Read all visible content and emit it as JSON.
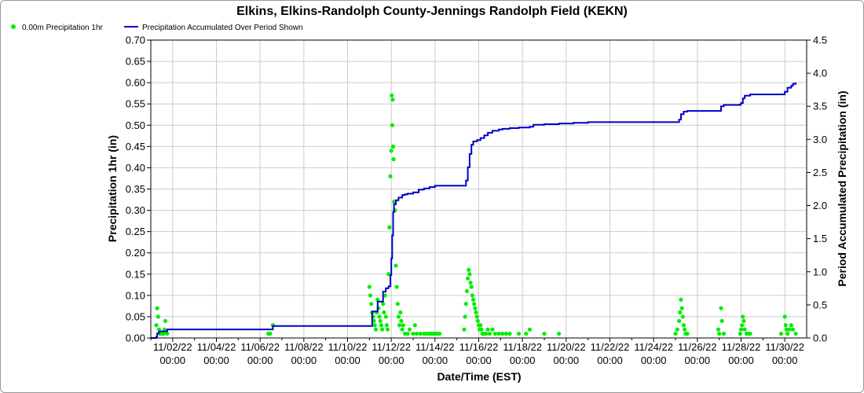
{
  "chart_data": {
    "type": "line",
    "title": "Elkins, Elkins-Randolph County-Jennings Randolph Field (KEKN)",
    "xlabel": "Date/Time (EST)",
    "ylabel": "Precipitation 1hr (in)",
    "y2label": "Period Accumulated Precipitation (in)",
    "xlim": [
      "2022-11-01 00:00",
      "2022-12-01 00:00"
    ],
    "ylim": [
      0,
      0.7
    ],
    "y2lim": [
      0,
      4.5
    ],
    "grid": true,
    "legend_position": "top-left",
    "x_ticks": [
      {
        "date": "2022-11-02",
        "line1": "11/02/22",
        "line2": "00:00"
      },
      {
        "date": "2022-11-04",
        "line1": "11/04/22",
        "line2": "00:00"
      },
      {
        "date": "2022-11-06",
        "line1": "11/06/22",
        "line2": "00:00"
      },
      {
        "date": "2022-11-08",
        "line1": "11/08/22",
        "line2": "00:00"
      },
      {
        "date": "2022-11-10",
        "line1": "11/10/22",
        "line2": "00:00"
      },
      {
        "date": "2022-11-12",
        "line1": "11/12/22",
        "line2": "00:00"
      },
      {
        "date": "2022-11-14",
        "line1": "11/14/22",
        "line2": "00:00"
      },
      {
        "date": "2022-11-16",
        "line1": "11/16/22",
        "line2": "00:00"
      },
      {
        "date": "2022-11-18",
        "line1": "11/18/22",
        "line2": "00:00"
      },
      {
        "date": "2022-11-20",
        "line1": "11/20/22",
        "line2": "00:00"
      },
      {
        "date": "2022-11-22",
        "line1": "11/22/22",
        "line2": "00:00"
      },
      {
        "date": "2022-11-24",
        "line1": "11/24/22",
        "line2": "00:00"
      },
      {
        "date": "2022-11-26",
        "line1": "11/26/22",
        "line2": "00:00"
      },
      {
        "date": "2022-11-28",
        "line1": "11/28/22",
        "line2": "00:00"
      },
      {
        "date": "2022-11-30",
        "line1": "11/30/22",
        "line2": "00:00"
      }
    ],
    "y_ticks": [
      "0.00",
      "0.05",
      "0.10",
      "0.15",
      "0.20",
      "0.25",
      "0.30",
      "0.35",
      "0.40",
      "0.45",
      "0.50",
      "0.55",
      "0.60",
      "0.65",
      "0.70"
    ],
    "y2_ticks": [
      "0.0",
      "0.5",
      "1.0",
      "1.5",
      "2.0",
      "2.5",
      "3.0",
      "3.5",
      "4.0",
      "4.5"
    ],
    "series": [
      {
        "name": "0.00m Precipitation 1hr",
        "kind": "scatter",
        "color": "#00ee00",
        "points": [
          [
            "2022-11-01 06:00",
            0.03
          ],
          [
            "2022-11-01 07:00",
            0.07
          ],
          [
            "2022-11-01 08:00",
            0.05
          ],
          [
            "2022-11-01 09:00",
            0.02
          ],
          [
            "2022-11-01 10:00",
            0.01
          ],
          [
            "2022-11-01 12:00",
            0.01
          ],
          [
            "2022-11-01 14:00",
            0.01
          ],
          [
            "2022-11-01 15:00",
            0.02
          ],
          [
            "2022-11-01 16:00",
            0.04
          ],
          [
            "2022-11-01 18:00",
            0.01
          ],
          [
            "2022-11-06 09:00",
            0.01
          ],
          [
            "2022-11-06 11:00",
            0.01
          ],
          [
            "2022-11-06 14:00",
            0.03
          ],
          [
            "2022-11-11 00:00",
            0.12
          ],
          [
            "2022-11-11 01:00",
            0.1
          ],
          [
            "2022-11-11 02:00",
            0.08
          ],
          [
            "2022-11-11 03:00",
            0.06
          ],
          [
            "2022-11-11 04:00",
            0.05
          ],
          [
            "2022-11-11 05:00",
            0.04
          ],
          [
            "2022-11-11 06:00",
            0.03
          ],
          [
            "2022-11-11 07:00",
            0.02
          ],
          [
            "2022-11-11 08:00",
            0.06
          ],
          [
            "2022-11-11 09:00",
            0.09
          ],
          [
            "2022-11-11 10:00",
            0.07
          ],
          [
            "2022-11-11 11:00",
            0.05
          ],
          [
            "2022-11-11 12:00",
            0.04
          ],
          [
            "2022-11-11 13:00",
            0.03
          ],
          [
            "2022-11-11 14:00",
            0.02
          ],
          [
            "2022-11-11 15:00",
            0.08
          ],
          [
            "2022-11-11 16:00",
            0.06
          ],
          [
            "2022-11-11 17:00",
            0.1
          ],
          [
            "2022-11-11 18:00",
            0.05
          ],
          [
            "2022-11-11 19:00",
            0.03
          ],
          [
            "2022-11-11 20:00",
            0.02
          ],
          [
            "2022-11-11 21:00",
            0.15
          ],
          [
            "2022-11-11 22:00",
            0.26
          ],
          [
            "2022-11-11 23:00",
            0.38
          ],
          [
            "2022-11-12 00:00",
            0.44
          ],
          [
            "2022-11-12 00:30",
            0.57
          ],
          [
            "2022-11-12 01:00",
            0.5
          ],
          [
            "2022-11-12 01:30",
            0.56
          ],
          [
            "2022-11-12 02:00",
            0.45
          ],
          [
            "2022-11-12 02:30",
            0.42
          ],
          [
            "2022-11-12 03:00",
            0.32
          ],
          [
            "2022-11-12 04:00",
            0.3
          ],
          [
            "2022-11-12 05:00",
            0.17
          ],
          [
            "2022-11-12 06:00",
            0.12
          ],
          [
            "2022-11-12 07:00",
            0.08
          ],
          [
            "2022-11-12 08:00",
            0.05
          ],
          [
            "2022-11-12 09:00",
            0.03
          ],
          [
            "2022-11-12 10:00",
            0.06
          ],
          [
            "2022-11-12 11:00",
            0.04
          ],
          [
            "2022-11-12 12:00",
            0.02
          ],
          [
            "2022-11-12 13:00",
            0.03
          ],
          [
            "2022-11-12 15:00",
            0.01
          ],
          [
            "2022-11-12 18:00",
            0.01
          ],
          [
            "2022-11-12 20:00",
            0.02
          ],
          [
            "2022-11-13 00:00",
            0.01
          ],
          [
            "2022-11-13 02:00",
            0.03
          ],
          [
            "2022-11-13 04:00",
            0.01
          ],
          [
            "2022-11-13 08:00",
            0.01
          ],
          [
            "2022-11-13 12:00",
            0.01
          ],
          [
            "2022-11-13 15:00",
            0.01
          ],
          [
            "2022-11-13 18:00",
            0.01
          ],
          [
            "2022-11-13 20:00",
            0.01
          ],
          [
            "2022-11-13 22:00",
            0.01
          ],
          [
            "2022-11-14 00:00",
            0.01
          ],
          [
            "2022-11-14 02:00",
            0.01
          ],
          [
            "2022-11-14 05:00",
            0.01
          ],
          [
            "2022-11-15 08:00",
            0.02
          ],
          [
            "2022-11-15 09:00",
            0.05
          ],
          [
            "2022-11-15 10:00",
            0.08
          ],
          [
            "2022-11-15 11:00",
            0.11
          ],
          [
            "2022-11-15 12:00",
            0.14
          ],
          [
            "2022-11-15 13:00",
            0.16
          ],
          [
            "2022-11-15 14:00",
            0.15
          ],
          [
            "2022-11-15 15:00",
            0.13
          ],
          [
            "2022-11-15 16:00",
            0.12
          ],
          [
            "2022-11-15 17:00",
            0.1
          ],
          [
            "2022-11-15 18:00",
            0.09
          ],
          [
            "2022-11-15 19:00",
            0.08
          ],
          [
            "2022-11-15 20:00",
            0.07
          ],
          [
            "2022-11-15 21:00",
            0.06
          ],
          [
            "2022-11-15 22:00",
            0.05
          ],
          [
            "2022-11-15 23:00",
            0.04
          ],
          [
            "2022-11-16 00:00",
            0.03
          ],
          [
            "2022-11-16 01:00",
            0.02
          ],
          [
            "2022-11-16 02:00",
            0.03
          ],
          [
            "2022-11-16 03:00",
            0.02
          ],
          [
            "2022-11-16 04:00",
            0.01
          ],
          [
            "2022-11-16 06:00",
            0.01
          ],
          [
            "2022-11-16 08:00",
            0.01
          ],
          [
            "2022-11-16 10:00",
            0.02
          ],
          [
            "2022-11-16 12:00",
            0.01
          ],
          [
            "2022-11-16 15:00",
            0.02
          ],
          [
            "2022-11-16 18:00",
            0.01
          ],
          [
            "2022-11-16 22:00",
            0.01
          ],
          [
            "2022-11-17 02:00",
            0.01
          ],
          [
            "2022-11-17 06:00",
            0.01
          ],
          [
            "2022-11-17 10:00",
            0.01
          ],
          [
            "2022-11-17 20:00",
            0.01
          ],
          [
            "2022-11-18 04:00",
            0.01
          ],
          [
            "2022-11-18 08:00",
            0.02
          ],
          [
            "2022-11-19 00:00",
            0.01
          ],
          [
            "2022-11-19 16:00",
            0.01
          ],
          [
            "2022-11-25 00:00",
            0.01
          ],
          [
            "2022-11-25 02:00",
            0.02
          ],
          [
            "2022-11-25 04:00",
            0.04
          ],
          [
            "2022-11-25 05:00",
            0.06
          ],
          [
            "2022-11-25 06:00",
            0.09
          ],
          [
            "2022-11-25 07:00",
            0.07
          ],
          [
            "2022-11-25 08:00",
            0.05
          ],
          [
            "2022-11-25 09:00",
            0.03
          ],
          [
            "2022-11-25 10:00",
            0.02
          ],
          [
            "2022-11-25 11:00",
            0.01
          ],
          [
            "2022-11-25 13:00",
            0.01
          ],
          [
            "2022-11-26 23:00",
            0.02
          ],
          [
            "2022-11-27 00:00",
            0.01
          ],
          [
            "2022-11-27 02:00",
            0.07
          ],
          [
            "2022-11-27 03:00",
            0.04
          ],
          [
            "2022-11-27 05:00",
            0.01
          ],
          [
            "2022-11-27 23:00",
            0.01
          ],
          [
            "2022-11-28 00:00",
            0.02
          ],
          [
            "2022-11-28 01:00",
            0.03
          ],
          [
            "2022-11-28 02:00",
            0.05
          ],
          [
            "2022-11-28 03:00",
            0.04
          ],
          [
            "2022-11-28 04:00",
            0.02
          ],
          [
            "2022-11-28 06:00",
            0.01
          ],
          [
            "2022-11-28 08:00",
            0.01
          ],
          [
            "2022-11-28 10:00",
            0.01
          ],
          [
            "2022-11-29 20:00",
            0.01
          ],
          [
            "2022-11-30 00:00",
            0.05
          ],
          [
            "2022-11-30 01:00",
            0.03
          ],
          [
            "2022-11-30 02:00",
            0.02
          ],
          [
            "2022-11-30 03:00",
            0.01
          ],
          [
            "2022-11-30 05:00",
            0.02
          ],
          [
            "2022-11-30 07:00",
            0.03
          ],
          [
            "2022-11-30 09:00",
            0.02
          ],
          [
            "2022-11-30 12:00",
            0.01
          ]
        ]
      },
      {
        "name": "Precipitation Accumulated Over Period Shown",
        "kind": "line",
        "axis": "right",
        "color": "#0000cc",
        "points": [
          [
            "2022-11-01 00:00",
            0.0
          ],
          [
            "2022-11-01 06:00",
            0.02
          ],
          [
            "2022-11-01 07:00",
            0.07
          ],
          [
            "2022-11-01 09:00",
            0.1
          ],
          [
            "2022-11-01 18:00",
            0.13
          ],
          [
            "2022-11-06 09:00",
            0.13
          ],
          [
            "2022-11-06 14:00",
            0.18
          ],
          [
            "2022-11-11 00:00",
            0.18
          ],
          [
            "2022-11-11 03:00",
            0.4
          ],
          [
            "2022-11-11 09:00",
            0.55
          ],
          [
            "2022-11-11 15:00",
            0.7
          ],
          [
            "2022-11-11 18:00",
            0.75
          ],
          [
            "2022-11-11 21:00",
            0.78
          ],
          [
            "2022-11-11 23:00",
            0.95
          ],
          [
            "2022-11-12 00:00",
            1.2
          ],
          [
            "2022-11-12 01:00",
            1.55
          ],
          [
            "2022-11-12 02:00",
            1.9
          ],
          [
            "2022-11-12 03:00",
            2.02
          ],
          [
            "2022-11-12 05:00",
            2.08
          ],
          [
            "2022-11-12 08:00",
            2.12
          ],
          [
            "2022-11-12 12:00",
            2.16
          ],
          [
            "2022-11-12 15:00",
            2.17
          ],
          [
            "2022-11-12 18:00",
            2.18
          ],
          [
            "2022-11-13 00:00",
            2.2
          ],
          [
            "2022-11-13 06:00",
            2.24
          ],
          [
            "2022-11-13 12:00",
            2.26
          ],
          [
            "2022-11-13 18:00",
            2.28
          ],
          [
            "2022-11-14 00:00",
            2.3
          ],
          [
            "2022-11-14 05:00",
            2.3
          ],
          [
            "2022-11-15 08:00",
            2.3
          ],
          [
            "2022-11-15 10:00",
            2.38
          ],
          [
            "2022-11-15 12:00",
            2.58
          ],
          [
            "2022-11-15 14:00",
            2.78
          ],
          [
            "2022-11-15 16:00",
            2.92
          ],
          [
            "2022-11-15 18:00",
            2.97
          ],
          [
            "2022-11-15 22:00",
            2.99
          ],
          [
            "2022-11-16 02:00",
            3.02
          ],
          [
            "2022-11-16 06:00",
            3.06
          ],
          [
            "2022-11-16 10:00",
            3.1
          ],
          [
            "2022-11-16 15:00",
            3.13
          ],
          [
            "2022-11-16 22:00",
            3.15
          ],
          [
            "2022-11-17 02:00",
            3.16
          ],
          [
            "2022-11-17 10:00",
            3.17
          ],
          [
            "2022-11-17 20:00",
            3.18
          ],
          [
            "2022-11-18 08:00",
            3.19
          ],
          [
            "2022-11-18 12:00",
            3.22
          ],
          [
            "2022-11-19 00:00",
            3.23
          ],
          [
            "2022-11-19 16:00",
            3.24
          ],
          [
            "2022-11-20 08:00",
            3.25
          ],
          [
            "2022-11-21 00:00",
            3.26
          ],
          [
            "2022-11-25 00:00",
            3.26
          ],
          [
            "2022-11-25 04:00",
            3.3
          ],
          [
            "2022-11-25 06:00",
            3.38
          ],
          [
            "2022-11-25 09:00",
            3.42
          ],
          [
            "2022-11-25 13:00",
            3.43
          ],
          [
            "2022-11-27 00:00",
            3.43
          ],
          [
            "2022-11-27 02:00",
            3.5
          ],
          [
            "2022-11-27 05:00",
            3.52
          ],
          [
            "2022-11-27 23:00",
            3.53
          ],
          [
            "2022-11-28 00:00",
            3.55
          ],
          [
            "2022-11-28 02:00",
            3.62
          ],
          [
            "2022-11-28 04:00",
            3.66
          ],
          [
            "2022-11-28 10:00",
            3.68
          ],
          [
            "2022-11-29 20:00",
            3.68
          ],
          [
            "2022-11-30 00:00",
            3.72
          ],
          [
            "2022-11-30 03:00",
            3.78
          ],
          [
            "2022-11-30 07:00",
            3.81
          ],
          [
            "2022-11-30 09:00",
            3.84
          ],
          [
            "2022-11-30 12:00",
            3.86
          ]
        ]
      }
    ]
  }
}
